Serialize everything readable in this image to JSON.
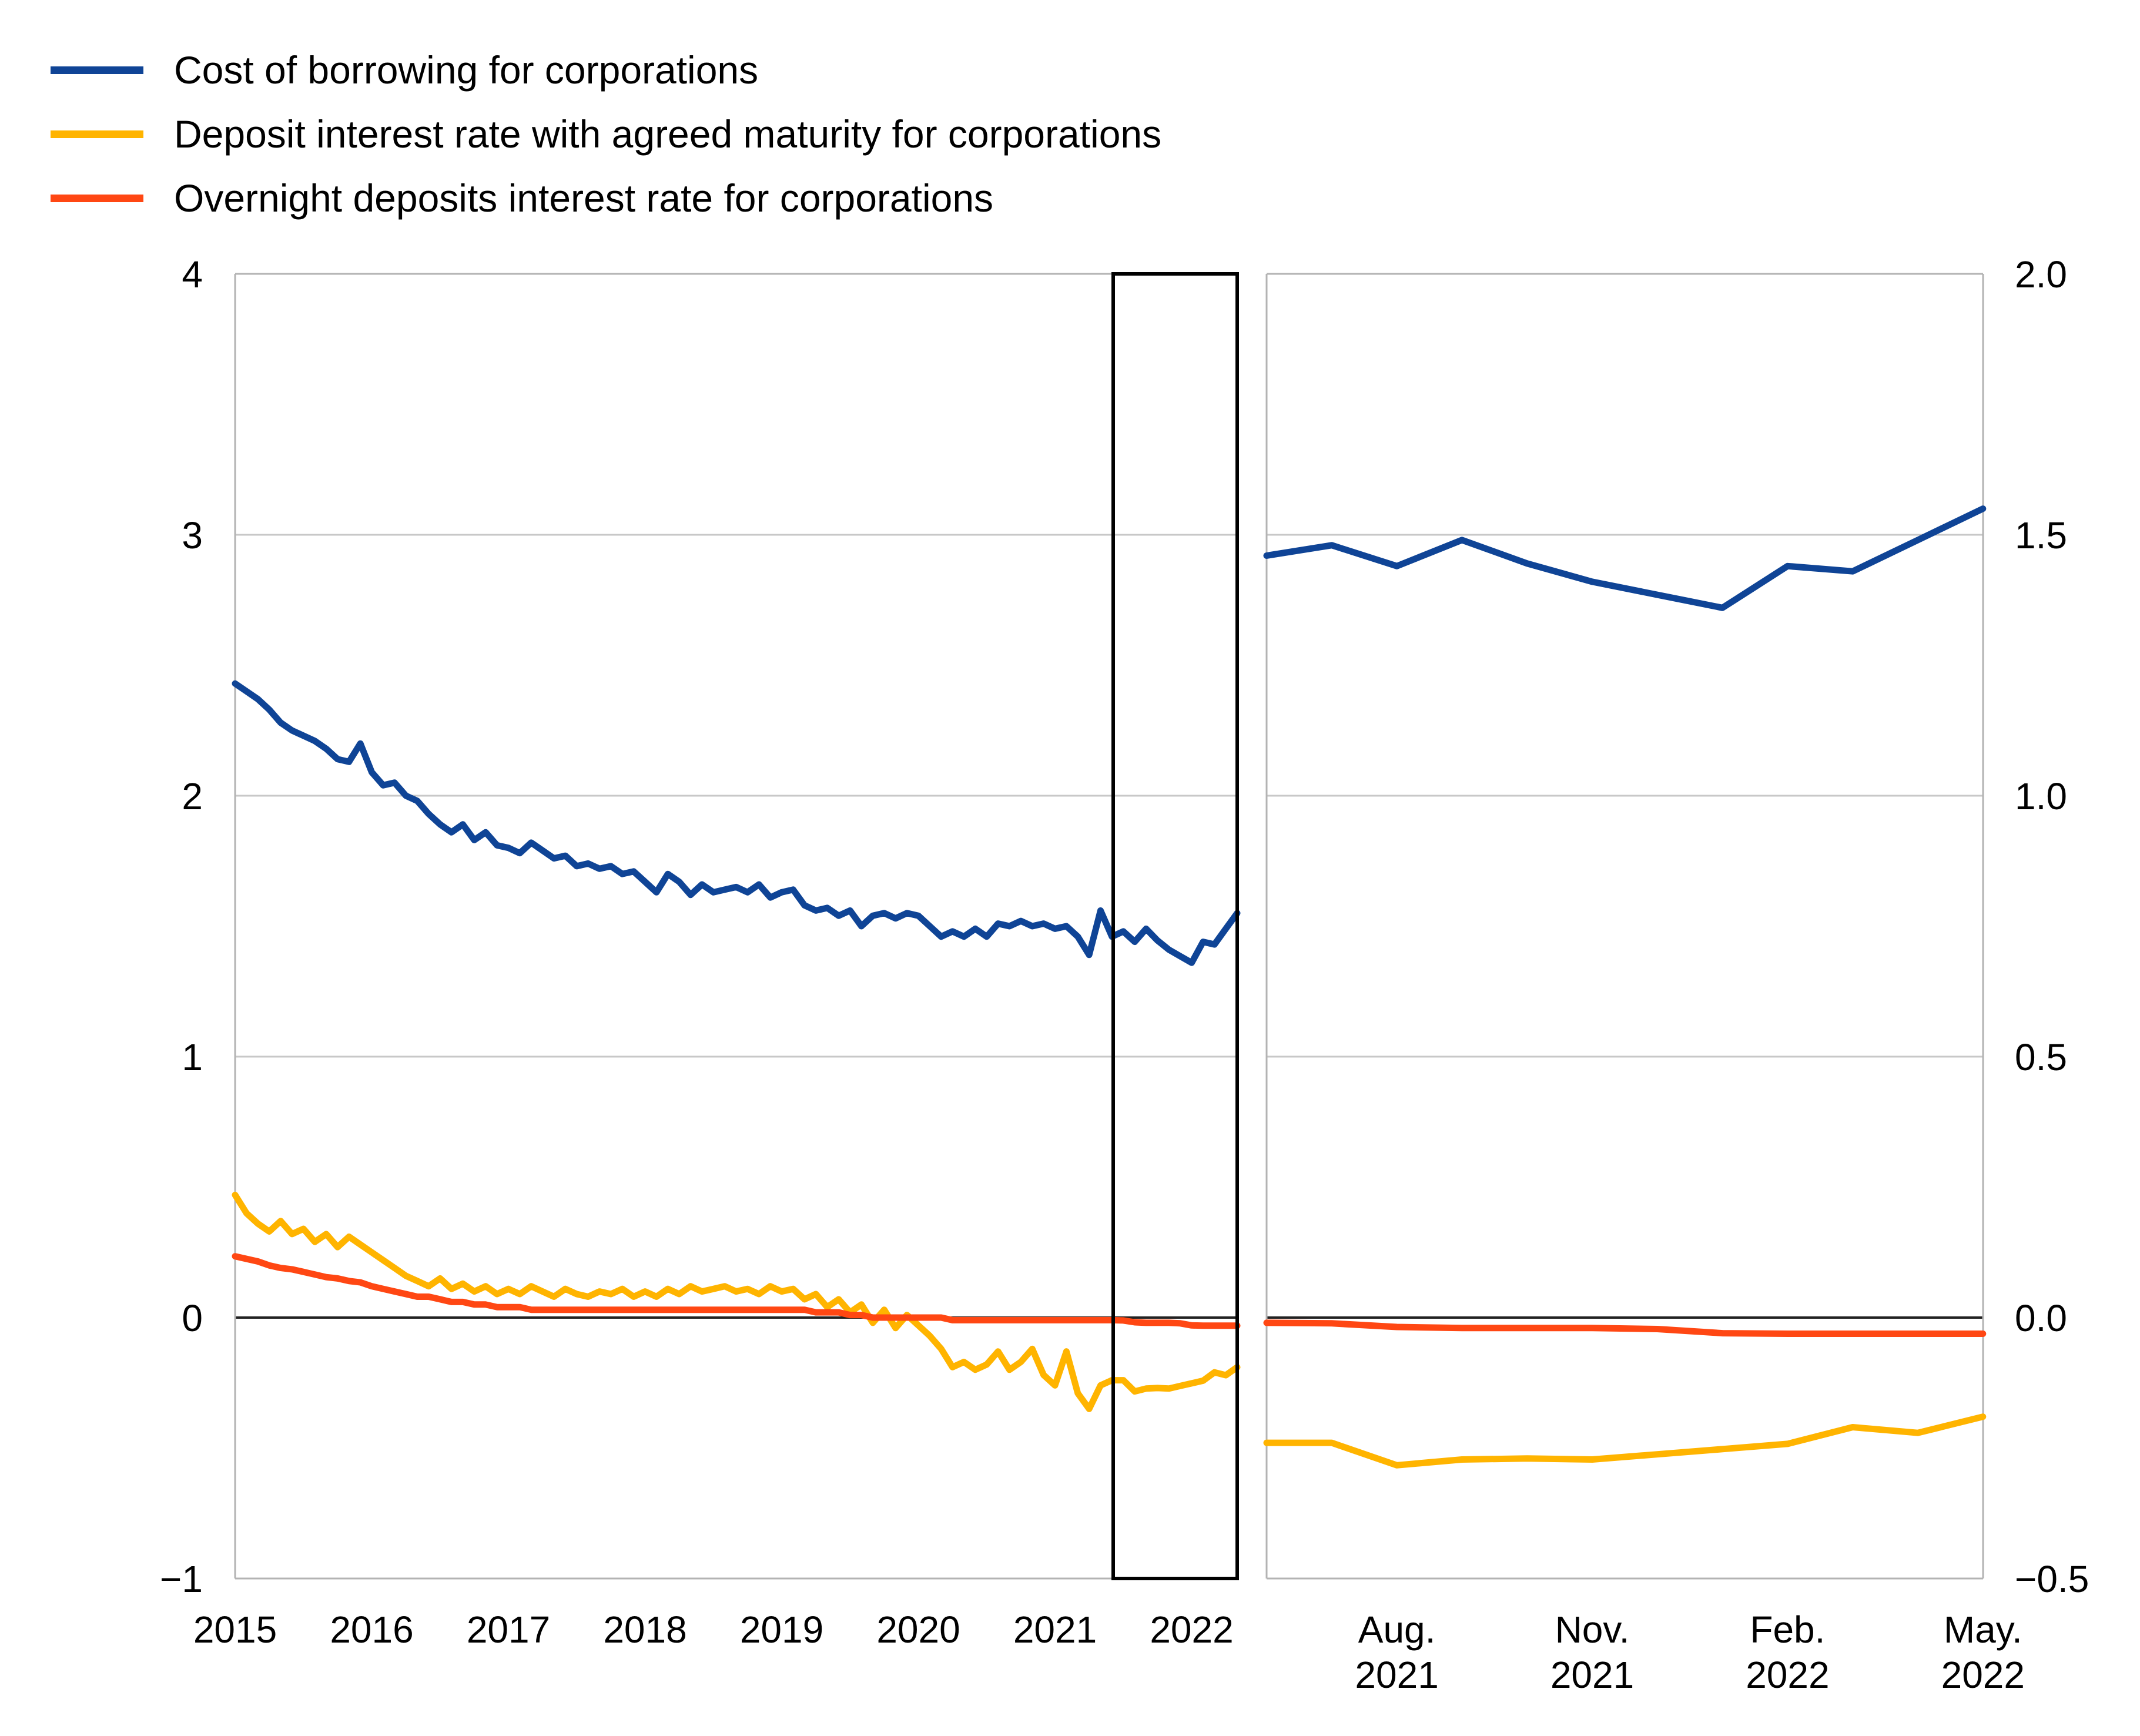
{
  "legend": [
    {
      "label": "Cost of borrowing for corporations",
      "color": "#0f4496"
    },
    {
      "label": "Deposit interest rate with agreed maturity for corporations",
      "color": "#ffb400"
    },
    {
      "label": "Overnight deposits interest rate for corporations",
      "color": "#ff4713"
    }
  ],
  "colors": {
    "grid": "#c8c8c8",
    "frame": "#b3b3b3",
    "zero_line": "#222222",
    "highlight_box": "#000000",
    "text": "#000000",
    "background": "#ffffff"
  },
  "chart_data": [
    {
      "type": "line",
      "panel": "left",
      "title": "",
      "x_start": "2015-01",
      "freq": "monthly",
      "n_points": 89,
      "ylim": [
        -1,
        4
      ],
      "grid": true,
      "yticks": [
        {
          "label": "4",
          "v": 4
        },
        {
          "label": "3",
          "v": 3
        },
        {
          "label": "2",
          "v": 2
        },
        {
          "label": "1",
          "v": 1
        },
        {
          "label": "0",
          "v": 0
        },
        {
          "label": "−1",
          "v": -1
        }
      ],
      "x_year_labels": [
        "2015",
        "2016",
        "2017",
        "2018",
        "2019",
        "2020",
        "2021",
        "2022"
      ],
      "highlight_box": {
        "from": "2021-06",
        "to": "2022-05"
      },
      "series": [
        {
          "name": "Cost of borrowing for corporations",
          "color": "#0f4496",
          "values": [
            2.43,
            2.4,
            2.37,
            2.33,
            2.28,
            2.25,
            2.23,
            2.21,
            2.18,
            2.14,
            2.13,
            2.2,
            2.09,
            2.04,
            2.05,
            2.0,
            1.98,
            1.93,
            1.89,
            1.86,
            1.89,
            1.83,
            1.86,
            1.81,
            1.8,
            1.78,
            1.82,
            1.79,
            1.76,
            1.77,
            1.73,
            1.74,
            1.72,
            1.73,
            1.7,
            1.71,
            1.67,
            1.63,
            1.7,
            1.67,
            1.62,
            1.66,
            1.63,
            1.64,
            1.65,
            1.63,
            1.66,
            1.61,
            1.63,
            1.64,
            1.58,
            1.56,
            1.57,
            1.54,
            1.56,
            1.5,
            1.54,
            1.55,
            1.53,
            1.55,
            1.54,
            1.5,
            1.46,
            1.48,
            1.46,
            1.49,
            1.46,
            1.51,
            1.5,
            1.52,
            1.5,
            1.51,
            1.49,
            1.5,
            1.46,
            1.39,
            1.56,
            1.46,
            1.48,
            1.44,
            1.49,
            1.445,
            1.41,
            1.385,
            1.36,
            1.44,
            1.43,
            1.49,
            1.55
          ]
        },
        {
          "name": "Deposit interest rate with agreed maturity for corporations",
          "color": "#ffb400",
          "values": [
            0.47,
            0.4,
            0.36,
            0.33,
            0.37,
            0.32,
            0.34,
            0.29,
            0.32,
            0.27,
            0.31,
            0.28,
            0.25,
            0.22,
            0.19,
            0.16,
            0.14,
            0.12,
            0.15,
            0.11,
            0.13,
            0.1,
            0.12,
            0.09,
            0.11,
            0.09,
            0.12,
            0.1,
            0.08,
            0.11,
            0.09,
            0.08,
            0.1,
            0.09,
            0.11,
            0.08,
            0.1,
            0.08,
            0.11,
            0.09,
            0.12,
            0.1,
            0.11,
            0.12,
            0.1,
            0.11,
            0.09,
            0.12,
            0.1,
            0.11,
            0.07,
            0.09,
            0.04,
            0.07,
            0.02,
            0.05,
            -0.02,
            0.03,
            -0.04,
            0.01,
            -0.03,
            -0.07,
            -0.12,
            -0.19,
            -0.17,
            -0.2,
            -0.18,
            -0.13,
            -0.2,
            -0.17,
            -0.12,
            -0.22,
            -0.26,
            -0.13,
            -0.29,
            -0.35,
            -0.26,
            -0.24,
            -0.24,
            -0.283,
            -0.272,
            -0.27,
            -0.272,
            -0.262,
            -0.252,
            -0.242,
            -0.21,
            -0.221,
            -0.19
          ]
        },
        {
          "name": "Overnight deposits interest rate for corporations",
          "color": "#ff4713",
          "values": [
            0.235,
            0.225,
            0.215,
            0.2,
            0.19,
            0.185,
            0.175,
            0.165,
            0.155,
            0.15,
            0.14,
            0.135,
            0.12,
            0.11,
            0.1,
            0.09,
            0.08,
            0.08,
            0.07,
            0.06,
            0.06,
            0.05,
            0.05,
            0.04,
            0.04,
            0.04,
            0.03,
            0.03,
            0.03,
            0.03,
            0.03,
            0.03,
            0.03,
            0.03,
            0.03,
            0.03,
            0.03,
            0.03,
            0.03,
            0.03,
            0.03,
            0.03,
            0.03,
            0.03,
            0.03,
            0.03,
            0.03,
            0.03,
            0.03,
            0.03,
            0.03,
            0.02,
            0.02,
            0.02,
            0.01,
            0.01,
            0.0,
            0.0,
            0.0,
            0.0,
            0.0,
            0.0,
            0.0,
            -0.01,
            -0.01,
            -0.01,
            -0.01,
            -0.01,
            -0.01,
            -0.01,
            -0.01,
            -0.01,
            -0.01,
            -0.01,
            -0.01,
            -0.01,
            -0.01,
            -0.01,
            -0.011,
            -0.018,
            -0.02,
            -0.02,
            -0.02,
            -0.022,
            -0.03,
            -0.031,
            -0.031,
            -0.031,
            -0.031
          ]
        }
      ]
    },
    {
      "type": "line",
      "panel": "right",
      "title": "",
      "x_start": "2021-06",
      "freq": "monthly",
      "n_points": 12,
      "ylim": [
        -0.5,
        2.0
      ],
      "grid": true,
      "yticks": [
        {
          "label": "2.0",
          "v": 2.0
        },
        {
          "label": "1.5",
          "v": 1.5
        },
        {
          "label": "1.0",
          "v": 1.0
        },
        {
          "label": "0.5",
          "v": 0.5
        },
        {
          "label": "0.0",
          "v": 0.0
        },
        {
          "label": "−0.5",
          "v": -0.5
        }
      ],
      "x_tick_labels": [
        {
          "line1": "Aug.",
          "line2": "2021",
          "month_index": 2
        },
        {
          "line1": "Nov.",
          "line2": "2021",
          "month_index": 5
        },
        {
          "line1": "Feb.",
          "line2": "2022",
          "month_index": 8
        },
        {
          "line1": "May.",
          "line2": "2022",
          "month_index": 11
        }
      ],
      "series": [
        {
          "name": "Cost of borrowing for corporations",
          "color": "#0f4496",
          "values": [
            1.46,
            1.48,
            1.44,
            1.49,
            1.445,
            1.41,
            1.385,
            1.36,
            1.44,
            1.43,
            1.49,
            1.55
          ]
        },
        {
          "name": "Deposit interest rate with agreed maturity for corporations",
          "color": "#ffb400",
          "values": [
            -0.24,
            -0.24,
            -0.283,
            -0.272,
            -0.27,
            -0.272,
            -0.262,
            -0.252,
            -0.242,
            -0.21,
            -0.221,
            -0.19
          ]
        },
        {
          "name": "Overnight deposits interest rate for corporations",
          "color": "#ff4713",
          "values": [
            -0.01,
            -0.011,
            -0.018,
            -0.02,
            -0.02,
            -0.02,
            -0.022,
            -0.03,
            -0.031,
            -0.031,
            -0.031,
            -0.031
          ]
        }
      ]
    }
  ]
}
